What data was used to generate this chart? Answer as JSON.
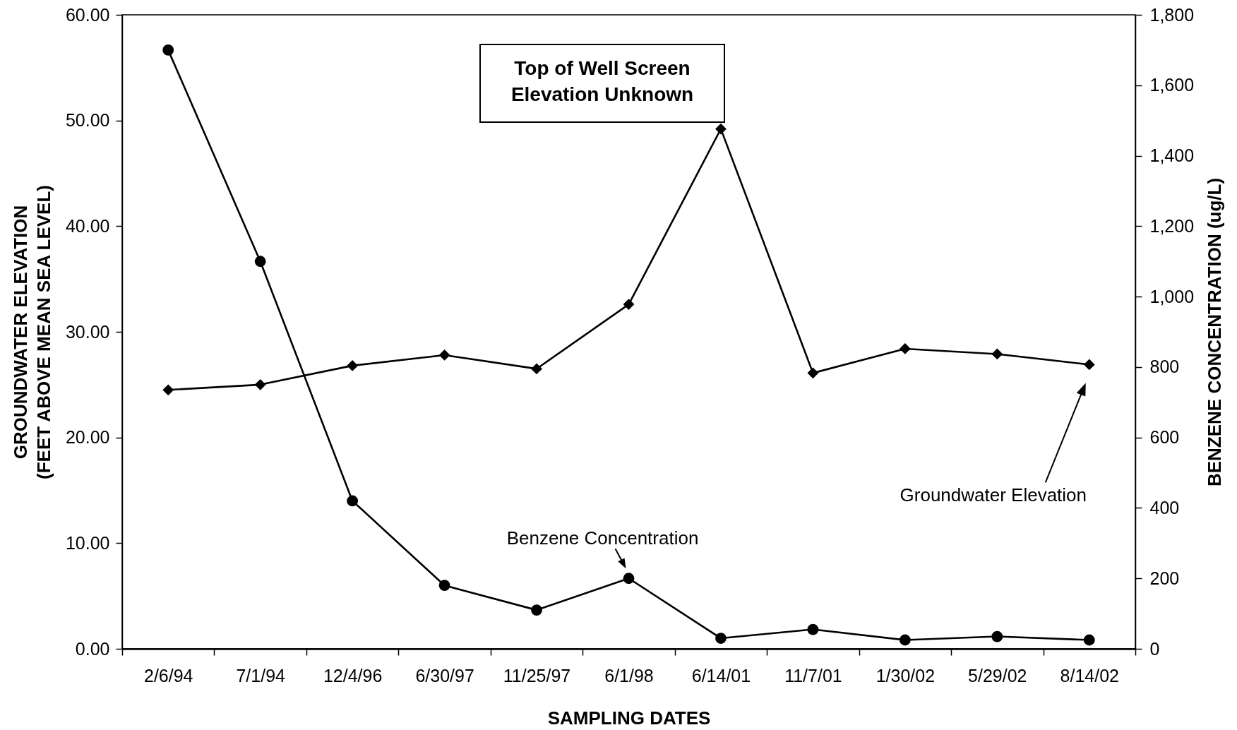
{
  "chart_data": {
    "type": "line",
    "categories": [
      "2/6/94",
      "7/1/94",
      "12/4/96",
      "6/30/97",
      "11/25/97",
      "6/1/98",
      "6/14/01",
      "11/7/01",
      "1/30/02",
      "5/29/02",
      "8/14/02"
    ],
    "xlabel": "SAMPLING DATES",
    "ylabel": "GROUNDWATER ELEVATION\n(FEET ABOVE MEAN SEA LEVEL)",
    "y2label": "BENZENE CONCENTRATION (ug/L)",
    "ylim": [
      0,
      60
    ],
    "yticks": [
      {
        "value": 0,
        "label": "0.00"
      },
      {
        "value": 10,
        "label": "10.00"
      },
      {
        "value": 20,
        "label": "20.00"
      },
      {
        "value": 30,
        "label": "30.00"
      },
      {
        "value": 40,
        "label": "40.00"
      },
      {
        "value": 50,
        "label": "50.00"
      },
      {
        "value": 60,
        "label": "60.00"
      }
    ],
    "y2lim": [
      0,
      1800
    ],
    "y2ticks": [
      0,
      200,
      400,
      600,
      800,
      {
        "value": 1000,
        "label": "1,000"
      },
      {
        "value": 1200,
        "label": "1,200"
      },
      {
        "value": 1400,
        "label": "1,400"
      },
      {
        "value": 1600,
        "label": "1,600"
      },
      {
        "value": 1800,
        "label": "1,800"
      }
    ],
    "series": [
      {
        "name": "Groundwater Elevation",
        "color": "#000000",
        "marker": "diamond",
        "values": [
          24.5,
          25.0,
          26.8,
          27.8,
          26.5,
          32.6,
          49.2,
          26.1,
          28.4,
          27.9,
          26.9
        ]
      },
      {
        "name": "Benzene Concentration",
        "color": "#000000",
        "marker": "circle",
        "axis": "y2",
        "values": [
          1700,
          1100,
          420,
          180,
          110,
          200,
          30,
          55,
          25,
          35,
          25
        ]
      }
    ],
    "annotations": [
      "Top of Well Screen\nElevation Unknown"
    ]
  }
}
